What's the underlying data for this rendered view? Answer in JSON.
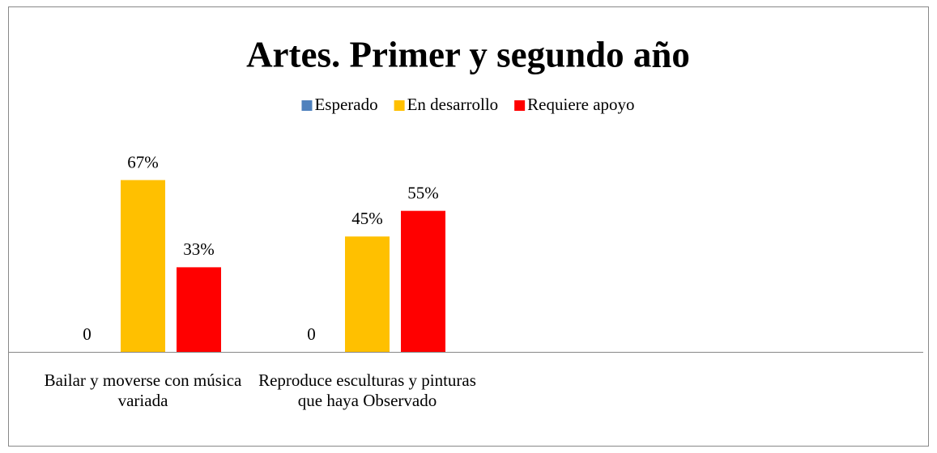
{
  "chart_data": {
    "type": "bar",
    "title": "Artes. Primer y segundo año",
    "categories": [
      "Bailar y moverse con música variada",
      "Reproduce esculturas y pinturas que haya Observado"
    ],
    "series": [
      {
        "name": "Esperado",
        "color": "#4f81bd",
        "values": [
          0,
          0
        ],
        "value_labels": [
          "0",
          "0"
        ]
      },
      {
        "name": "En desarrollo",
        "color": "#ffc000",
        "values": [
          67,
          45
        ],
        "value_labels": [
          "67%",
          "45%"
        ]
      },
      {
        "name": "Requiere apoyo",
        "color": "#ff0000",
        "values": [
          33,
          55
        ],
        "value_labels": [
          "33%",
          "55%"
        ]
      }
    ],
    "ylim": [
      0,
      100
    ],
    "legend": "top"
  }
}
